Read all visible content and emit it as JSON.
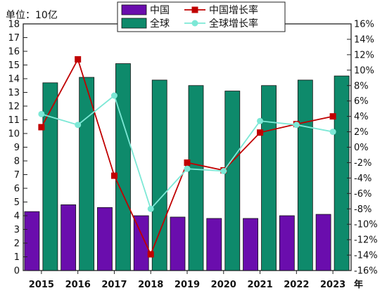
{
  "chart_data": {
    "type": "bar+line",
    "unit_label": "单位：10亿",
    "x_suffix": "年",
    "categories": [
      "2015",
      "2016",
      "2017",
      "2018",
      "2019",
      "2020",
      "2021",
      "2022",
      "2023"
    ],
    "bar_series": [
      {
        "name": "中国",
        "color": "#6a0dad",
        "values": [
          4.3,
          4.8,
          4.6,
          4.0,
          3.9,
          3.8,
          3.8,
          4.0,
          4.1
        ]
      },
      {
        "name": "全球",
        "color": "#0e8a6b",
        "values": [
          13.7,
          14.1,
          15.1,
          13.9,
          13.5,
          13.1,
          13.5,
          13.9,
          14.2
        ]
      }
    ],
    "line_series": [
      {
        "name": "中国增长率",
        "color": "#c00000",
        "marker": "square",
        "values": [
          2.6,
          11.4,
          -3.7,
          -13.9,
          -2.0,
          -3.0,
          1.9,
          3.0,
          4.0
        ]
      },
      {
        "name": "全球增长率",
        "color": "#7de8d6",
        "marker": "circle",
        "values": [
          4.3,
          2.9,
          6.7,
          -8.0,
          -2.8,
          -3.1,
          3.4,
          2.9,
          2.0
        ]
      }
    ],
    "y_left": {
      "min": 0,
      "max": 18,
      "step": 1
    },
    "y_right": {
      "min": -16,
      "max": 16,
      "step": 2,
      "suffix": "%"
    },
    "legend": {
      "placement": "top-center"
    },
    "grid": false
  }
}
